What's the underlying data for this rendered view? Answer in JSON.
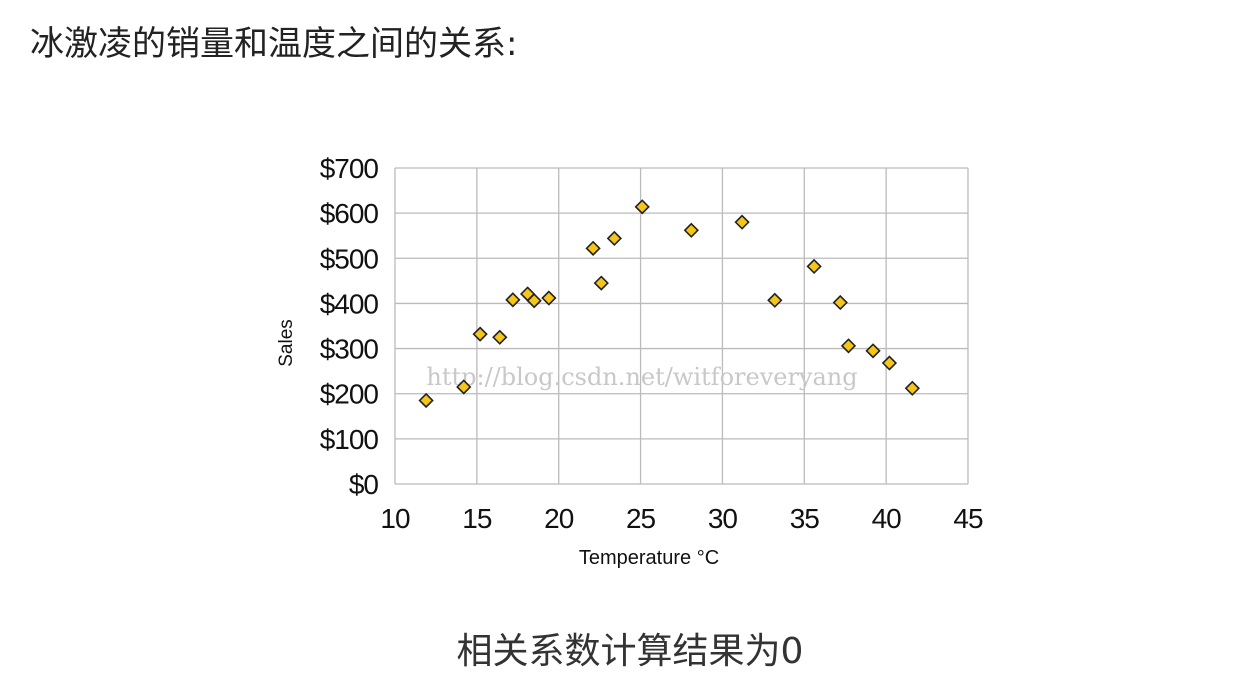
{
  "page": {
    "heading": "冰激凌的销量和温度之间的关系:",
    "caption": "相关系数计算结果为0",
    "watermark": "http://blog.csdn.net/witforeveryang"
  },
  "chart_data": {
    "type": "scatter",
    "title": "",
    "xlabel": "Temperature °C",
    "ylabel": "Sales",
    "xlim": [
      10,
      45
    ],
    "ylim": [
      0,
      700
    ],
    "x_ticks": [
      10,
      15,
      20,
      25,
      30,
      35,
      40,
      45
    ],
    "y_ticks": [
      0,
      100,
      200,
      300,
      400,
      500,
      600,
      700
    ],
    "y_tick_labels": [
      "$0",
      "$100",
      "$200",
      "$300",
      "$400",
      "$500",
      "$600",
      "$700"
    ],
    "grid": true,
    "legend": "none",
    "marker": "diamond",
    "colors": {
      "marker_fill": "#F5C518",
      "marker_stroke": "#222222",
      "grid": "#BBBBBB",
      "axis_text": "#111111"
    },
    "series": [
      {
        "x": [
          11.9,
          14.2,
          15.2,
          16.4,
          17.2,
          18.1,
          18.5,
          19.4,
          22.1,
          22.6,
          23.4,
          25.1,
          28.1,
          31.2,
          33.2,
          35.6,
          37.2,
          37.7,
          39.2,
          40.2,
          41.6
        ],
        "y": [
          185,
          215,
          332,
          325,
          408,
          421,
          406,
          412,
          522,
          445,
          544,
          614,
          562,
          580,
          407,
          482,
          402,
          306,
          295,
          268,
          212
        ]
      }
    ]
  }
}
